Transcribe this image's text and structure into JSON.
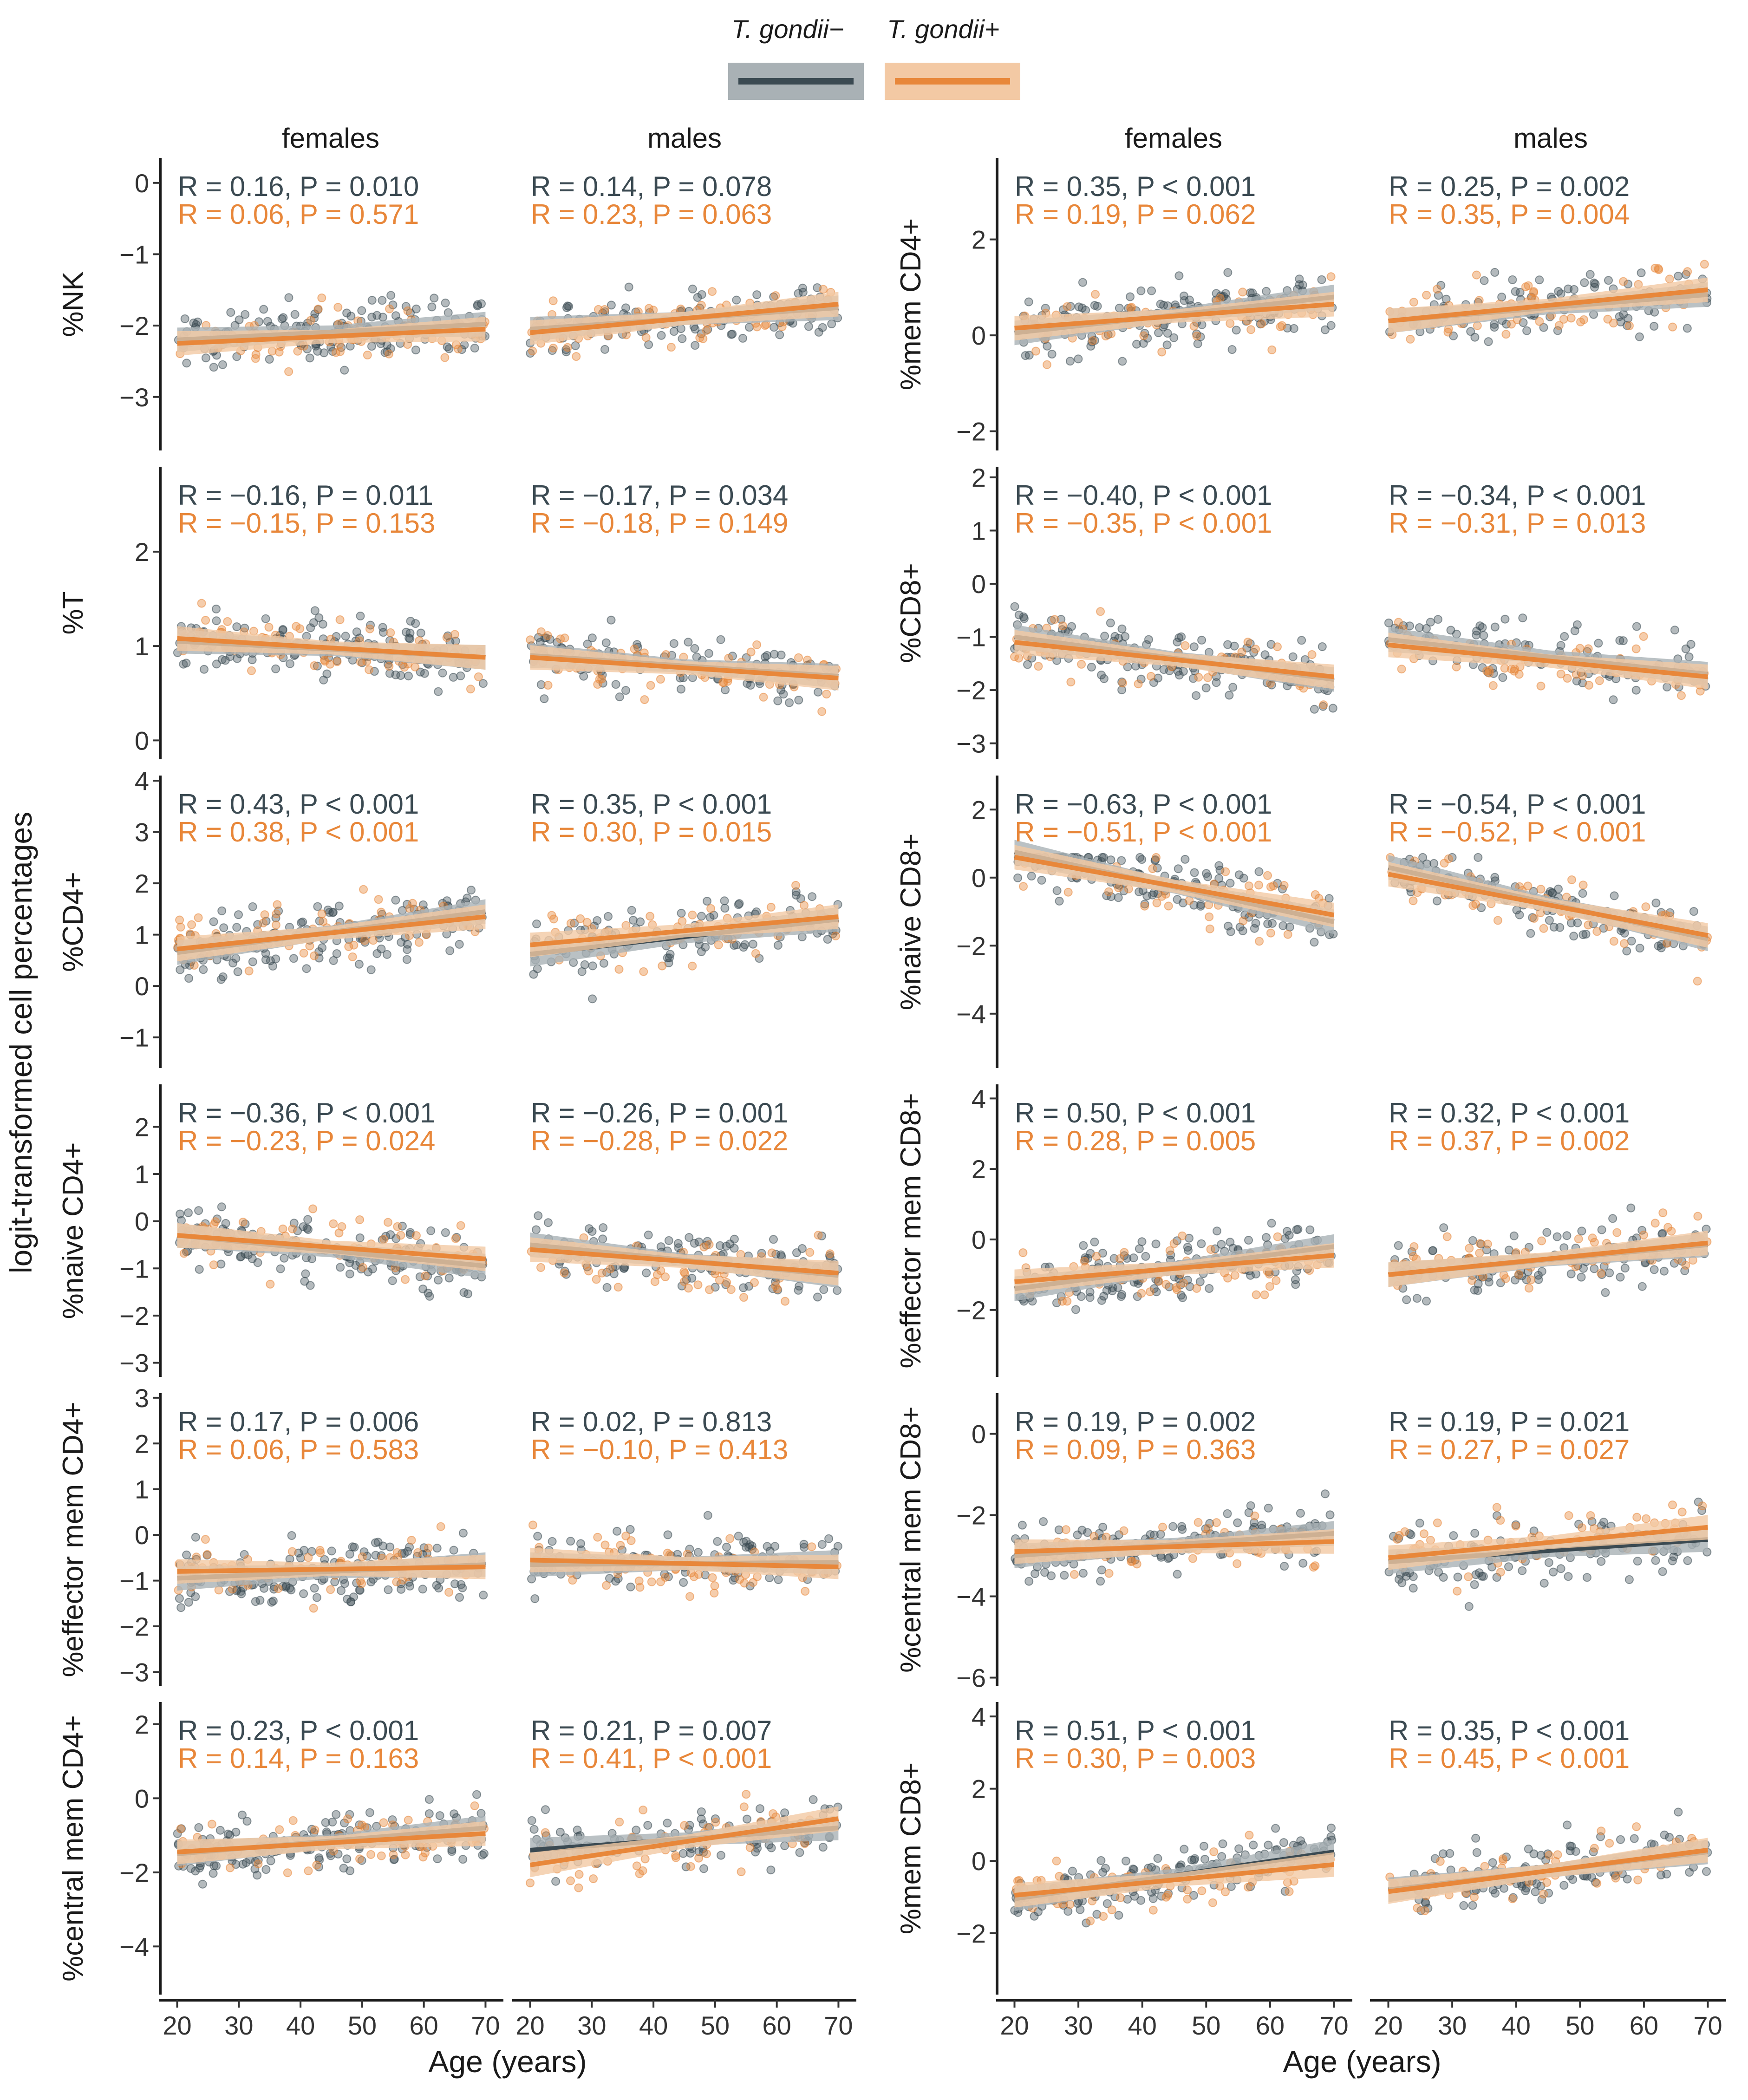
{
  "colors": {
    "negative": "#3b4a52",
    "positive": "#e8873a",
    "negative_band": "#a9b1b5",
    "positive_band": "#f3c9a4"
  },
  "legend": {
    "negative_label": "T. gondii−",
    "positive_label": "T. gondii+"
  },
  "strips": {
    "females": "females",
    "males": "males"
  },
  "axis_titles": {
    "x": "Age (years)",
    "y": "logit-transformed cell percentages"
  },
  "chart_data": {
    "type": "scatter",
    "x_ticks": [
      20,
      30,
      40,
      50,
      60,
      70
    ],
    "xlim": [
      18,
      72
    ],
    "panels": [
      {
        "column": "left",
        "ylabel": "%NK",
        "ylim": [
          -3.75,
          0.35
        ],
        "yticks": [
          0,
          -1,
          -2,
          -3
        ],
        "ytick_labels": [
          "0",
          "−1",
          "−2",
          "−3"
        ],
        "females": {
          "neg": {
            "label": "R = 0.16, P = 0.010",
            "r": 0.16,
            "p": "0.010",
            "line": [
              -2.2,
              -1.98
            ]
          },
          "pos": {
            "label": "R = 0.06, P = 0.571",
            "r": 0.06,
            "p": "0.571",
            "line": [
              -2.25,
              -2.05
            ]
          }
        },
        "males": {
          "neg": {
            "label": "R = 0.14, P = 0.078",
            "r": 0.14,
            "p": "0.078",
            "line": [
              -2.05,
              -1.75
            ]
          },
          "pos": {
            "label": "R = 0.23, P = 0.063",
            "r": 0.23,
            "p": "0.063",
            "line": [
              -2.1,
              -1.7
            ]
          }
        }
      },
      {
        "column": "left",
        "ylabel": "%T",
        "ylim": [
          -0.2,
          2.9
        ],
        "yticks": [
          0,
          1,
          2
        ],
        "ytick_labels": [
          "0",
          "1",
          "2"
        ],
        "females": {
          "neg": {
            "label": "R = −0.16, P = 0.011",
            "r": -0.16,
            "p": "0.011",
            "line": [
              1.05,
              0.88
            ]
          },
          "pos": {
            "label": "R = −0.15, P = 0.153",
            "r": -0.15,
            "p": "0.153",
            "line": [
              1.08,
              0.88
            ]
          }
        },
        "males": {
          "neg": {
            "label": "R = −0.17, P = 0.034",
            "r": -0.17,
            "p": "0.034",
            "line": [
              0.9,
              0.68
            ]
          },
          "pos": {
            "label": "R = −0.18, P = 0.149",
            "r": -0.18,
            "p": "0.149",
            "line": [
              0.88,
              0.66
            ]
          }
        }
      },
      {
        "column": "left",
        "ylabel": "%CD4+",
        "ylim": [
          -1.6,
          4.1
        ],
        "yticks": [
          4,
          3,
          2,
          1,
          0,
          -1
        ],
        "ytick_labels": [
          "4",
          "3",
          "2",
          "1",
          "0",
          "−1"
        ],
        "females": {
          "neg": {
            "label": "R = 0.43, P < 0.001",
            "r": 0.43,
            "p": "< 0.001",
            "line": [
              0.65,
              1.45
            ]
          },
          "pos": {
            "label": "R = 0.38, P < 0.001",
            "r": 0.38,
            "p": "< 0.001",
            "line": [
              0.72,
              1.35
            ]
          }
        },
        "males": {
          "neg": {
            "label": "R = 0.35, P < 0.001",
            "r": 0.35,
            "p": "< 0.001",
            "line": [
              0.62,
              1.3
            ]
          },
          "pos": {
            "label": "R = 0.30, P = 0.015",
            "r": 0.3,
            "p": "0.015",
            "line": [
              0.8,
              1.35
            ]
          }
        }
      },
      {
        "column": "left",
        "ylabel": "%naive CD4+",
        "ylim": [
          -3.3,
          2.9
        ],
        "yticks": [
          2,
          1,
          0,
          -1,
          -2,
          -3
        ],
        "ytick_labels": [
          "2",
          "1",
          "0",
          "−1",
          "−2",
          "−3"
        ],
        "females": {
          "neg": {
            "label": "R = −0.36, P < 0.001",
            "r": -0.36,
            "p": "< 0.001",
            "line": [
              -0.3,
              -0.95
            ]
          },
          "pos": {
            "label": "R = −0.23, P = 0.024",
            "r": -0.23,
            "p": "0.024",
            "line": [
              -0.3,
              -0.8
            ]
          }
        },
        "males": {
          "neg": {
            "label": "R = −0.26, P = 0.001",
            "r": -0.26,
            "p": "0.001",
            "line": [
              -0.5,
              -1.15
            ]
          },
          "pos": {
            "label": "R = −0.28, P = 0.022",
            "r": -0.28,
            "p": "0.022",
            "line": [
              -0.6,
              -1.1
            ]
          }
        }
      },
      {
        "column": "left",
        "ylabel": "%effector mem CD4+",
        "ylim": [
          -3.3,
          3.1
        ],
        "yticks": [
          3,
          2,
          1,
          0,
          -1,
          -2,
          -3
        ],
        "ytick_labels": [
          "3",
          "2",
          "1",
          "0",
          "−1",
          "−2",
          "−3"
        ],
        "females": {
          "neg": {
            "label": "R = 0.17, P = 0.006",
            "r": 0.17,
            "p": "0.006",
            "line": [
              -0.95,
              -0.65
            ]
          },
          "pos": {
            "label": "R = 0.06, P = 0.583",
            "r": 0.06,
            "p": "0.583",
            "line": [
              -0.8,
              -0.7
            ]
          }
        },
        "males": {
          "neg": {
            "label": "R = 0.02, P = 0.813",
            "r": 0.02,
            "p": "0.813",
            "line": [
              -0.65,
              -0.6
            ]
          },
          "pos": {
            "label": "R = −0.10, P = 0.413",
            "r": -0.1,
            "p": "0.413",
            "line": [
              -0.55,
              -0.7
            ]
          }
        }
      },
      {
        "column": "left",
        "ylabel": "%central mem CD4+",
        "ylim": [
          -5.3,
          2.6
        ],
        "yticks": [
          2,
          0,
          -2,
          -4
        ],
        "ytick_labels": [
          "2",
          "0",
          "−2",
          "−4"
        ],
        "females": {
          "neg": {
            "label": "R = 0.23, P < 0.001",
            "r": 0.23,
            "p": "< 0.001",
            "line": [
              -1.5,
              -0.8
            ]
          },
          "pos": {
            "label": "R = 0.14, P = 0.163",
            "r": 0.14,
            "p": "0.163",
            "line": [
              -1.45,
              -0.95
            ]
          }
        },
        "males": {
          "neg": {
            "label": "R = 0.21, P = 0.007",
            "r": 0.21,
            "p": "0.007",
            "line": [
              -1.4,
              -0.8
            ]
          },
          "pos": {
            "label": "R = 0.41, P < 0.001",
            "r": 0.41,
            "p": "< 0.001",
            "line": [
              -1.8,
              -0.55
            ]
          }
        }
      },
      {
        "column": "right",
        "ylabel": "%mem CD4+",
        "ylim": [
          -2.4,
          3.7
        ],
        "yticks": [
          2,
          0,
          -2
        ],
        "ytick_labels": [
          "2",
          "0",
          "−2"
        ],
        "females": {
          "neg": {
            "label": "R = 0.35, P < 0.001",
            "r": 0.35,
            "p": "< 0.001",
            "line": [
              0.05,
              0.8
            ]
          },
          "pos": {
            "label": "R = 0.19, P = 0.062",
            "r": 0.19,
            "p": "0.062",
            "line": [
              0.15,
              0.65
            ]
          }
        },
        "males": {
          "neg": {
            "label": "R = 0.25, P = 0.002",
            "r": 0.25,
            "p": "0.002",
            "line": [
              0.3,
              0.85
            ]
          },
          "pos": {
            "label": "R = 0.35, P = 0.004",
            "r": 0.35,
            "p": "0.004",
            "line": [
              0.3,
              0.95
            ]
          }
        }
      },
      {
        "column": "right",
        "ylabel": "%CD8+",
        "ylim": [
          -3.3,
          2.2
        ],
        "yticks": [
          2,
          1,
          0,
          -1,
          -2,
          -3
        ],
        "ytick_labels": [
          "2",
          "1",
          "0",
          "−1",
          "−2",
          "−3"
        ],
        "females": {
          "neg": {
            "label": "R = −0.40, P < 0.001",
            "r": -0.4,
            "p": "< 0.001",
            "line": [
              -1.0,
              -1.8
            ]
          },
          "pos": {
            "label": "R = −0.35, P < 0.001",
            "r": -0.35,
            "p": "< 0.001",
            "line": [
              -1.1,
              -1.75
            ]
          }
        },
        "males": {
          "neg": {
            "label": "R = −0.34, P < 0.001",
            "r": -0.34,
            "p": "< 0.001",
            "line": [
              -1.05,
              -1.7
            ]
          },
          "pos": {
            "label": "R = −0.31, P = 0.013",
            "r": -0.31,
            "p": "0.013",
            "line": [
              -1.15,
              -1.75
            ]
          }
        }
      },
      {
        "column": "right",
        "ylabel": "%naive CD8+",
        "ylim": [
          -5.6,
          3.0
        ],
        "yticks": [
          2,
          0,
          -2,
          -4
        ],
        "ytick_labels": [
          "2",
          "0",
          "−2",
          "−4"
        ],
        "females": {
          "neg": {
            "label": "R = −0.63, P < 0.001",
            "r": -0.63,
            "p": "< 0.001",
            "line": [
              0.75,
              -1.3
            ]
          },
          "pos": {
            "label": "R = −0.51, P < 0.001",
            "r": -0.51,
            "p": "< 0.001",
            "line": [
              0.6,
              -1.1
            ]
          }
        },
        "males": {
          "neg": {
            "label": "R = −0.54, P < 0.001",
            "r": -0.54,
            "p": "< 0.001",
            "line": [
              0.3,
              -1.8
            ]
          },
          "pos": {
            "label": "R = −0.52, P < 0.001",
            "r": -0.52,
            "p": "< 0.001",
            "line": [
              0.1,
              -1.7
            ]
          }
        }
      },
      {
        "column": "right",
        "ylabel": "%effector mem CD8+",
        "ylim": [
          -3.9,
          4.4
        ],
        "yticks": [
          4,
          2,
          0,
          -2
        ],
        "ytick_labels": [
          "4",
          "2",
          "0",
          "−2"
        ],
        "females": {
          "neg": {
            "label": "R = 0.50, P < 0.001",
            "r": 0.5,
            "p": "< 0.001",
            "line": [
              -1.4,
              -0.2
            ]
          },
          "pos": {
            "label": "R = 0.28, P = 0.005",
            "r": 0.28,
            "p": "0.005",
            "line": [
              -1.2,
              -0.45
            ]
          }
        },
        "males": {
          "neg": {
            "label": "R = 0.32, P < 0.001",
            "r": 0.32,
            "p": "< 0.001",
            "line": [
              -1.0,
              -0.15
            ]
          },
          "pos": {
            "label": "R = 0.37, P = 0.002",
            "r": 0.37,
            "p": "0.002",
            "line": [
              -1.0,
              -0.1
            ]
          }
        }
      },
      {
        "column": "right",
        "ylabel": "%central mem CD8+",
        "ylim": [
          -6.2,
          1.0
        ],
        "yticks": [
          0,
          -2,
          -4,
          -6
        ],
        "ytick_labels": [
          "0",
          "−2",
          "−4",
          "−6"
        ],
        "females": {
          "neg": {
            "label": "R = 0.19, P = 0.002",
            "r": 0.19,
            "p": "0.002",
            "line": [
              -3.0,
              -2.45
            ]
          },
          "pos": {
            "label": "R = 0.09, P = 0.363",
            "r": 0.09,
            "p": "0.363",
            "line": [
              -2.9,
              -2.65
            ]
          }
        },
        "males": {
          "neg": {
            "label": "R = 0.19, P = 0.021",
            "r": 0.19,
            "p": "0.021",
            "line": [
              -3.15,
              -2.6
            ]
          },
          "pos": {
            "label": "R = 0.27, P = 0.027",
            "r": 0.27,
            "p": "0.027",
            "line": [
              -3.05,
              -2.3
            ]
          }
        }
      },
      {
        "column": "right",
        "ylabel": "%mem CD8+",
        "ylim": [
          -3.7,
          4.4
        ],
        "yticks": [
          4,
          2,
          0,
          -2
        ],
        "ytick_labels": [
          "4",
          "2",
          "0",
          "−2"
        ],
        "females": {
          "neg": {
            "label": "R = 0.51, P < 0.001",
            "r": 0.51,
            "p": "< 0.001",
            "line": [
              -1.05,
              0.25
            ]
          },
          "pos": {
            "label": "R = 0.30, P = 0.003",
            "r": 0.3,
            "p": "0.003",
            "line": [
              -0.95,
              -0.1
            ]
          }
        },
        "males": {
          "neg": {
            "label": "R = 0.35, P < 0.001",
            "r": 0.35,
            "p": "< 0.001",
            "line": [
              -0.8,
              0.25
            ]
          },
          "pos": {
            "label": "R = 0.45, P < 0.001",
            "r": 0.45,
            "p": "< 0.001",
            "line": [
              -0.85,
              0.3
            ]
          }
        }
      }
    ]
  }
}
